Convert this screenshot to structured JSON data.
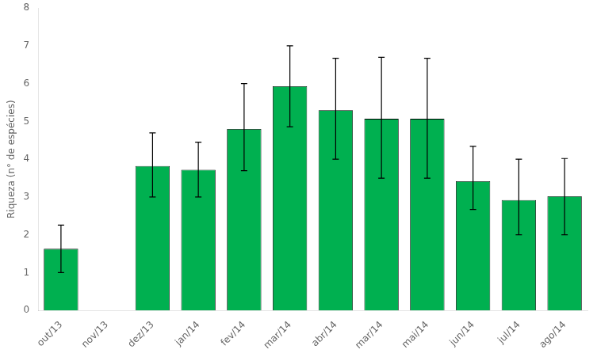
{
  "chart_data": {
    "type": "bar",
    "categories": [
      "out/13",
      "nov/13",
      "dez/13",
      "jan/14",
      "fev/14",
      "mar/14",
      "abr/14",
      "mar/14",
      "mai/14",
      "jun/14",
      "jul/14",
      "ago/14"
    ],
    "values": [
      1.63,
      0.0,
      3.82,
      3.72,
      4.8,
      5.93,
      5.3,
      5.07,
      5.07,
      3.42,
      2.92,
      3.02
    ],
    "errors_upper": [
      0.63,
      0.0,
      0.88,
      0.73,
      1.2,
      1.07,
      1.37,
      1.63,
      1.6,
      0.92,
      1.08,
      1.0
    ],
    "errors_lower": [
      0.63,
      0.0,
      0.82,
      0.72,
      1.1,
      1.07,
      1.3,
      1.57,
      1.57,
      0.75,
      0.92,
      1.02
    ],
    "color": "#00b050",
    "ylabel": "Riqueza (n° de espécies)",
    "ylim": [
      0,
      8
    ],
    "yticks": [
      0,
      1,
      2,
      3,
      4,
      5,
      6,
      7,
      8
    ],
    "grid": false
  }
}
